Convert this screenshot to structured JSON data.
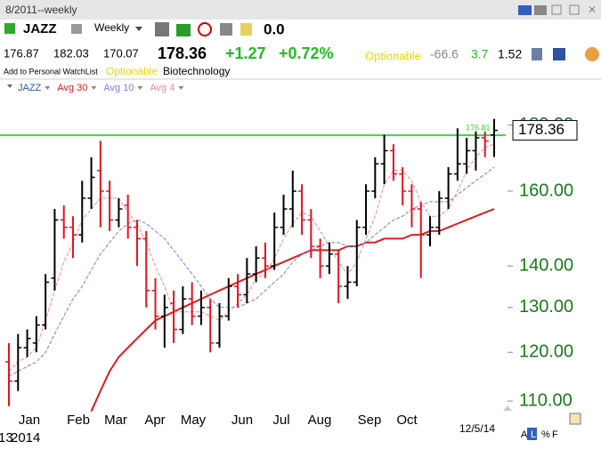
{
  "toolbar": {
    "title": "8/2011--weekly",
    "period": "Weekly",
    "zero": "0.0",
    "change": "+1.27",
    "change_pct": "+0.72%",
    "optionable": "Optionable",
    "stat1": "-66.6",
    "stat2": "3.7",
    "stat3": "1.52",
    "watchlist": "Add to Personal WatchList",
    "optionable2": "Optionable",
    "industry": "Biotechnology",
    "flags": [
      "A",
      "L",
      "%",
      "F"
    ]
  },
  "chart_data": {
    "type": "ohlc",
    "log_scale": true,
    "ylim": [
      108.8,
      194.5
    ],
    "yticks": [
      {
        "value": 110,
        "label": "110.00"
      },
      {
        "value": 120,
        "label": "120.00"
      },
      {
        "value": 130,
        "label": "130.00"
      },
      {
        "value": 140,
        "label": "140.00"
      },
      {
        "value": 160,
        "label": "160.00"
      },
      {
        "value": 180,
        "label": "180.00"
      }
    ],
    "up_color": "#000000",
    "down_color": "#e0141e",
    "ohlc": {
      "name": "JAZZ",
      "open": [
        118,
        114,
        121,
        122,
        126,
        137,
        152,
        150,
        148,
        158,
        166,
        160,
        152,
        156,
        150,
        147,
        134,
        128,
        131,
        125,
        132,
        128,
        130,
        122,
        128,
        135,
        133,
        138,
        142,
        140,
        150,
        155,
        160,
        152,
        145,
        140,
        143,
        135,
        136,
        150,
        160,
        168,
        172,
        165,
        160,
        155,
        148,
        150,
        158,
        165,
        168,
        172,
        176,
        176.87
      ],
      "high": [
        122,
        124,
        125,
        128,
        138,
        155,
        156,
        153,
        163,
        170,
        175,
        163,
        158,
        159,
        152,
        149,
        137,
        133,
        134,
        135,
        136,
        134,
        132,
        131,
        137,
        138,
        142,
        145,
        146,
        154,
        159,
        166,
        162,
        155,
        147,
        146,
        144,
        140,
        152,
        162,
        170,
        177,
        174,
        167,
        162,
        157,
        153,
        160,
        167,
        179,
        176,
        178,
        178,
        182.03
      ],
      "low": [
        109,
        112,
        119,
        120,
        125,
        134,
        147,
        142,
        146,
        155,
        150,
        149,
        150,
        147,
        140,
        130,
        125,
        121,
        122,
        124,
        126,
        126,
        120,
        121,
        127,
        130,
        131,
        136,
        137,
        139,
        148,
        150,
        148,
        142,
        137,
        138,
        131,
        132,
        135,
        148,
        158,
        162,
        163,
        156,
        150,
        137,
        145,
        148,
        155,
        163,
        165,
        166,
        170,
        170.07
      ],
      "close": [
        114,
        121,
        123,
        126,
        136,
        152,
        150,
        148,
        158,
        164,
        160,
        152,
        155,
        150,
        147,
        134,
        128,
        130,
        125,
        132,
        128,
        130,
        122,
        128,
        135,
        133,
        138,
        142,
        140,
        150,
        155,
        160,
        152,
        145,
        140,
        143,
        135,
        136,
        150,
        160,
        168,
        172,
        165,
        160,
        155,
        148,
        150,
        158,
        165,
        168,
        172,
        176,
        175,
        178.36
      ]
    },
    "series": [
      {
        "name": "Avg 30",
        "color": "#d81e1e",
        "style": "solid",
        "values": [
          null,
          null,
          null,
          null,
          null,
          null,
          null,
          null,
          null,
          108,
          112,
          116,
          119,
          121,
          123,
          125,
          127,
          128,
          129,
          130,
          131,
          132,
          133,
          134,
          135,
          136,
          137,
          138,
          139,
          140,
          141,
          142,
          143,
          144,
          144,
          144,
          144,
          145,
          145,
          146,
          146,
          147,
          147,
          147,
          148,
          148,
          149,
          149,
          150,
          151,
          152,
          153,
          154,
          155
        ]
      },
      {
        "name": "Avg 10",
        "color": "#7b7be8",
        "style": "dashed",
        "values": [
          115,
          116,
          117,
          118,
          120,
          124,
          128,
          132,
          135,
          139,
          143,
          146,
          149,
          151,
          152,
          151,
          149,
          147,
          144,
          141,
          138,
          135,
          132,
          130,
          130,
          130,
          131,
          132,
          134,
          136,
          138,
          141,
          143,
          144,
          145,
          146,
          146,
          145,
          145,
          146,
          148,
          150,
          152,
          153,
          155,
          156,
          157,
          157,
          157,
          159,
          161,
          163,
          165,
          167
        ]
      },
      {
        "name": "Avg 4",
        "color": "#f08a8a",
        "style": "dashed",
        "values": [
          116,
          118,
          119,
          121,
          127,
          134,
          141,
          146,
          152,
          155,
          158,
          158,
          158,
          154,
          151,
          146,
          140,
          135,
          129,
          129,
          129,
          129,
          128,
          127,
          129,
          131,
          133,
          137,
          138,
          142,
          147,
          151,
          154,
          153,
          149,
          145,
          141,
          138,
          141,
          147,
          153,
          162,
          166,
          166,
          163,
          157,
          153,
          153,
          155,
          160,
          166,
          170,
          173,
          174
        ]
      }
    ],
    "hline": 176.81,
    "hline_color": "#33dd33",
    "months": [
      "Jan",
      "Feb",
      "Mar",
      "Apr",
      "May",
      "Jun",
      "Jul",
      "Aug",
      "Sep",
      "Oct"
    ],
    "date_label": "12/5/14",
    "year_labels": [
      "13",
      "2014"
    ]
  }
}
